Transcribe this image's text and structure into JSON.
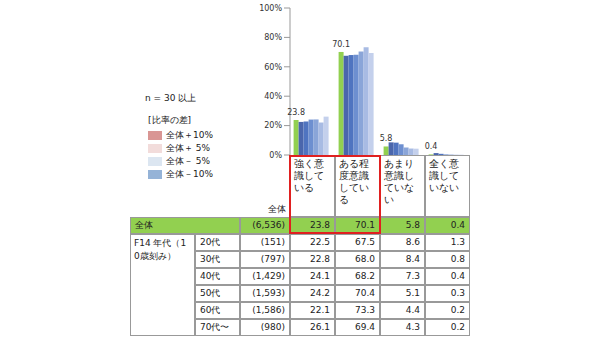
{
  "chart_data": {
    "type": "bar",
    "categories": [
      "強く意識している",
      "ある程度意識している",
      "あまり意識していない",
      "全く意識していない"
    ],
    "series": [
      {
        "name": "全体",
        "color": "#92d050",
        "values": [
          23.8,
          70.1,
          5.8,
          0.4
        ],
        "data_labels": true
      },
      {
        "name": "20代",
        "color": "#4a66ac",
        "values": [
          22.5,
          67.5,
          8.6,
          1.3
        ]
      },
      {
        "name": "30代",
        "color": "#4f74c0",
        "values": [
          22.8,
          68.0,
          8.4,
          0.8
        ]
      },
      {
        "name": "40代",
        "color": "#6d8fd0",
        "values": [
          24.1,
          68.2,
          7.3,
          0.4
        ]
      },
      {
        "name": "50代",
        "color": "#8aa5d8",
        "values": [
          24.2,
          70.4,
          5.1,
          0.3
        ]
      },
      {
        "name": "60代",
        "color": "#a8bbe3",
        "values": [
          22.1,
          73.3,
          4.4,
          0.2
        ]
      },
      {
        "name": "70代〜",
        "color": "#c4d0ec",
        "values": [
          26.1,
          69.4,
          4.3,
          0.2
        ]
      }
    ],
    "ylim": [
      0,
      100
    ],
    "yticks": [
      {
        "value": 0,
        "label": "0%"
      },
      {
        "value": 20,
        "label": "20%"
      },
      {
        "value": 40,
        "label": "40%"
      },
      {
        "value": 60,
        "label": "60%"
      },
      {
        "value": 80,
        "label": "80%"
      },
      {
        "value": 100,
        "label": "100%"
      }
    ],
    "grid": false
  },
  "legend_box": {
    "note": "n = 30 以上",
    "title": "[比率の差]",
    "items": [
      {
        "label": "全体＋10%",
        "color": "#d99694"
      },
      {
        "label": "全体＋ 5%",
        "color": "#f2dcdb"
      },
      {
        "label": "全体－ 5%",
        "color": "#dce6f1"
      },
      {
        "label": "全体－10%",
        "color": "#95b3d7"
      }
    ]
  },
  "table": {
    "n_header": "全体",
    "group_label": "F14 年代（10歳刻み）",
    "n": [
      "(6,536)",
      "(151)",
      "(797)",
      "(1,429)",
      "(1,593)",
      "(1,586)",
      "(980)"
    ],
    "cells": [
      [
        "23.8",
        "70.1",
        "5.8",
        "0.4"
      ],
      [
        "22.5",
        "67.5",
        "8.6",
        "1.3"
      ],
      [
        "22.8",
        "68.0",
        "8.4",
        "0.8"
      ],
      [
        "24.1",
        "68.2",
        "7.3",
        "0.4"
      ],
      [
        "24.2",
        "70.4",
        "5.1",
        "0.3"
      ],
      [
        "22.1",
        "73.3",
        "4.4",
        "0.2"
      ],
      [
        "26.1",
        "69.4",
        "4.3",
        "0.2"
      ]
    ]
  }
}
